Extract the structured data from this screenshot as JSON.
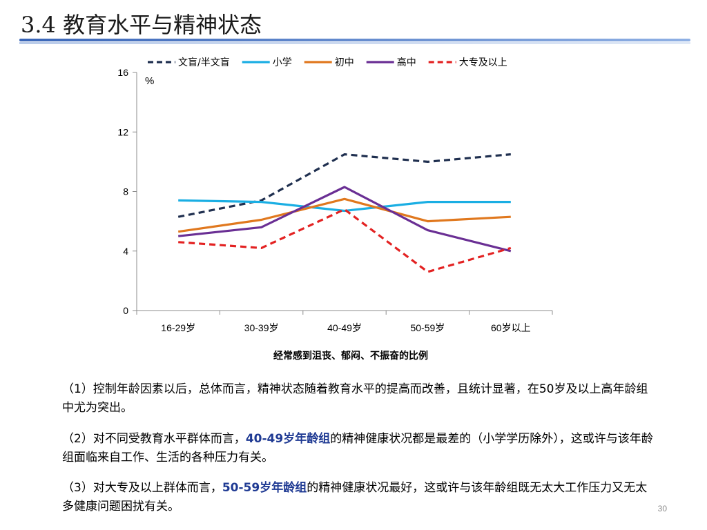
{
  "slide": {
    "title": "3.4 教育水平与精神状态",
    "page_number": "30"
  },
  "chart_data": {
    "type": "line",
    "title": "",
    "xlabel": "经常感到沮丧、郁闷、不振奋的比例",
    "ylabel": "%",
    "ylim": [
      0,
      16
    ],
    "yticks": [
      "0",
      "4",
      "8",
      "12",
      "16"
    ],
    "categories": [
      "16-29岁",
      "30-39岁",
      "40-49岁",
      "50-59岁",
      "60岁以上"
    ],
    "grid": false,
    "legend_position": "top",
    "series": [
      {
        "name": "文盲/半文盲",
        "values": [
          6.3,
          7.4,
          10.5,
          10.0,
          10.5
        ],
        "color": "#1f2f4f",
        "dashed": true
      },
      {
        "name": "小学",
        "values": [
          7.4,
          7.3,
          6.7,
          7.3,
          7.3
        ],
        "color": "#1aaee3",
        "dashed": false
      },
      {
        "name": "初中",
        "values": [
          5.3,
          6.1,
          7.5,
          6.0,
          6.3
        ],
        "color": "#e0781e",
        "dashed": false
      },
      {
        "name": "高中",
        "values": [
          5.0,
          5.6,
          8.3,
          5.4,
          4.0
        ],
        "color": "#6a2f94",
        "dashed": false
      },
      {
        "name": "大专及以上",
        "values": [
          4.6,
          4.2,
          6.8,
          2.6,
          4.2
        ],
        "color": "#e32222",
        "dashed": true
      }
    ]
  },
  "paragraphs": {
    "p1": "（1）控制年龄因素以后，总体而言，精神状态随着教育水平的提高而改善，且统计显著，在50岁及以上高年龄组中尤为突出。",
    "p2_a": "（2）对不同受教育水平群体而言，",
    "p2_hl": "40-49岁年龄组",
    "p2_b": "的精神健康状况都是最差的（小学学历除外），这或许与该年龄组面临来自工作、生活的各种压力有关。",
    "p3_a": "（3）对大专及以上群体而言，",
    "p3_hl": "50-59岁年龄组",
    "p3_b": "的精神健康状况最好，这或许与该年龄组既无太大工作压力又无太多健康问题困扰有关。"
  }
}
